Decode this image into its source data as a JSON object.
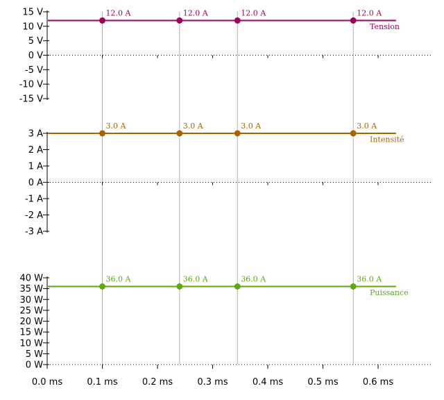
{
  "chart_data": {
    "type": "line",
    "x_axis": {
      "unit": "ms",
      "ticks": [
        0.0,
        0.1,
        0.2,
        0.3,
        0.4,
        0.5,
        0.6
      ],
      "tick_labels": [
        "0.0 ms",
        "0.1 ms",
        "0.2 ms",
        "0.3 ms",
        "0.4 ms",
        "0.5 ms",
        "0.6 ms"
      ],
      "xlim": [
        0.0,
        0.63
      ]
    },
    "sample_times": [
      0.1,
      0.24,
      0.345,
      0.555
    ],
    "panels": [
      {
        "name": "Tension",
        "color": "#a0005a",
        "ylim": [
          -15,
          15
        ],
        "ticks": [
          15,
          10,
          5,
          0,
          -5,
          -10,
          -15
        ],
        "tick_labels": [
          "15 V",
          "10 V",
          "5 V",
          "0 V",
          "-5 V",
          "-10 V",
          "-15 V"
        ],
        "values": [
          12.0,
          12.0,
          12.0,
          12.0
        ],
        "point_labels": [
          "12.0 A",
          "12.0 A",
          "12.0 A",
          "12.0 A"
        ]
      },
      {
        "name": "Intensité",
        "color": "#a86400",
        "ylim": [
          -3,
          3
        ],
        "ticks": [
          3,
          2,
          1,
          0,
          -1,
          -2,
          -3
        ],
        "tick_labels": [
          "3 A",
          "2 A",
          "1 A",
          "0 A",
          "-1 A",
          "-2 A",
          "-3 A"
        ],
        "values": [
          3.0,
          3.0,
          3.0,
          3.0
        ],
        "point_labels": [
          "3.0 A",
          "3.0 A",
          "3.0 A",
          "3.0 A"
        ]
      },
      {
        "name": "Puissance",
        "color": "#5aaa14",
        "ylim": [
          0,
          40
        ],
        "ticks": [
          40,
          35,
          30,
          25,
          20,
          15,
          10,
          5,
          0
        ],
        "tick_labels": [
          "40 W",
          "35 W",
          "30 W",
          "25 W",
          "20 W",
          "15 W",
          "10 W",
          "5 W",
          "0 W"
        ],
        "values": [
          36.0,
          36.0,
          36.0,
          36.0
        ],
        "point_labels": [
          "36.0 A",
          "36.0 A",
          "36.0 A",
          "36.0 A"
        ]
      }
    ]
  }
}
